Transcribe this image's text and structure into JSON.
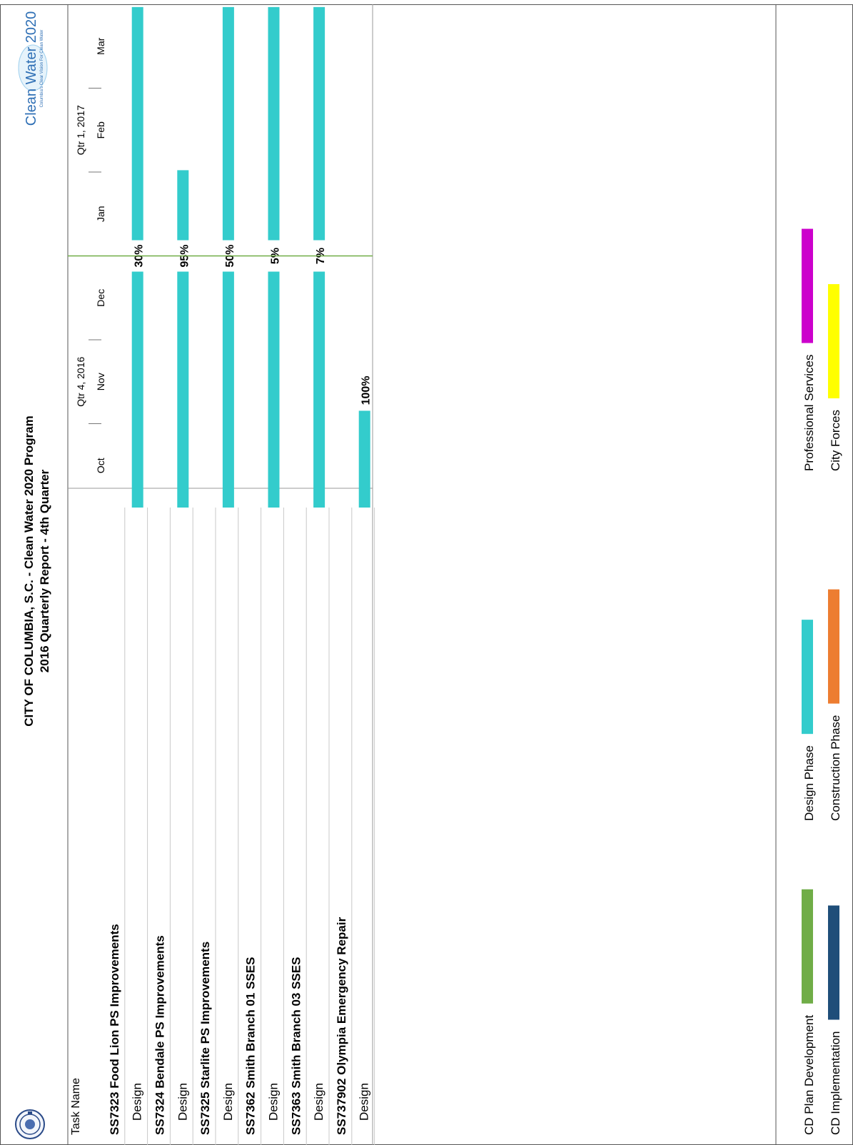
{
  "report": {
    "title": "CITY OF COLUMBIA, S.C. - Clean Water 2020 Program",
    "subtitle": "2016 Quarterly Report - 4th Quarter",
    "logo_text": "Clean Water 2020",
    "logo_subtext": "Columbia's Clear Vision For Clean Water"
  },
  "table": {
    "task_header": "Task Name"
  },
  "chart_data": {
    "type": "gantt",
    "timescale": {
      "quarters": [
        {
          "label": "Qtr 4, 2016",
          "months": [
            "Oct",
            "Nov",
            "Dec"
          ]
        },
        {
          "label": "Qtr 1, 2017",
          "months": [
            "Jan",
            "Feb",
            "Mar"
          ]
        }
      ],
      "status_date_marker": "2016-12-31"
    },
    "tasks": [
      {
        "id": "t1",
        "name": "SS7323 Food Lion PS Improvements",
        "level": 0,
        "is_summary": true
      },
      {
        "id": "t1d",
        "name": "Design",
        "level": 1,
        "start": "2016-10-01",
        "end": "2017-03-31",
        "percent_label": "30%",
        "phase": "Design Phase"
      },
      {
        "id": "t2",
        "name": "SS7324 Bendale PS Improvements",
        "level": 0,
        "is_summary": true
      },
      {
        "id": "t2d",
        "name": "Design",
        "level": 1,
        "start": "2016-10-01",
        "end": "2017-01-31",
        "percent_label": "95%",
        "phase": "Design Phase"
      },
      {
        "id": "t3",
        "name": "SS7325 Starlite PS Improvements",
        "level": 0,
        "is_summary": true
      },
      {
        "id": "t3d",
        "name": "Design",
        "level": 1,
        "start": "2016-10-01",
        "end": "2017-03-31",
        "percent_label": "50%",
        "phase": "Design Phase"
      },
      {
        "id": "t4",
        "name": "SS7362 Smith Branch 01 SSES",
        "level": 0,
        "is_summary": true
      },
      {
        "id": "t4d",
        "name": "Design",
        "level": 1,
        "start": "2016-10-01",
        "end": "2017-03-31",
        "percent_label": "5%",
        "phase": "Design Phase"
      },
      {
        "id": "t5",
        "name": "SS7363 Smith Branch 03 SSES",
        "level": 0,
        "is_summary": true
      },
      {
        "id": "t5d",
        "name": "Design",
        "level": 1,
        "start": "2016-10-01",
        "end": "2017-03-31",
        "percent_label": "7%",
        "phase": "Design Phase"
      },
      {
        "id": "t6",
        "name": "SS737902 Olympia Emergency Repair",
        "level": 0,
        "is_summary": true
      },
      {
        "id": "t6d",
        "name": "Design",
        "level": 1,
        "start": "2016-10-01",
        "end": "2016-11-05",
        "percent_label": "100%",
        "phase": "Design Phase"
      }
    ],
    "legend": [
      {
        "label": "CD Plan Development",
        "color": "#70ad47"
      },
      {
        "label": "Design Phase",
        "color": "#33cccc"
      },
      {
        "label": "Professional Services",
        "color": "#cc00cc"
      },
      {
        "label": "CD Implementation",
        "color": "#1f4e79"
      },
      {
        "label": "Construction Phase",
        "color": "#ed7d31"
      },
      {
        "label": "City Forces",
        "color": "#ffff00"
      }
    ]
  },
  "colors": {
    "bar": "#33cccc",
    "status_line": "#70ad47",
    "grid": "#c8c8c8",
    "border": "#555555"
  }
}
